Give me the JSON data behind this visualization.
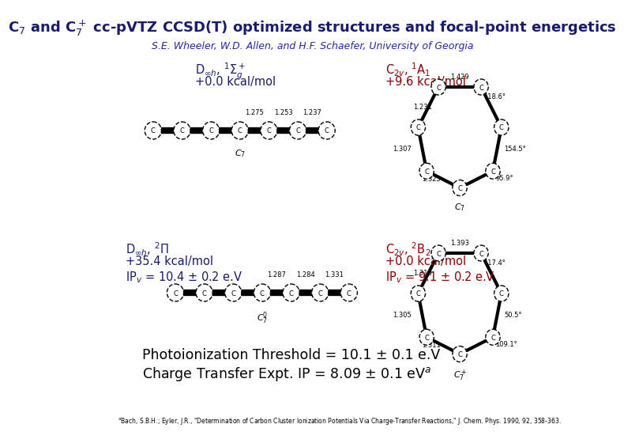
{
  "title": "C$_7$ and C$_7^+$ cc-pVTZ CCSD(T) optimized structures and focal-point energetics",
  "subtitle": "S.E. Wheeler, W.D. Allen, and H.F. Schaefer, University of Georgia",
  "title_color": "#1a1a6e",
  "subtitle_color": "#2828a0",
  "bg_color": "#ffffff",
  "label_neutral_1_line1": "D$_{\\infty h}$, $^1\\Sigma_g^+$",
  "label_neutral_1_line2": "+0.0 kcal/mol",
  "label_neutral_2_line1": "C$_{2v}$, $^1$A$_1$",
  "label_neutral_2_line2": "+9.6 kcal/mol",
  "label_cation_1_line1": "D$_{\\infty h}$, $^2\\Pi$",
  "label_cation_1_line2": "+35.4 kcal/mol",
  "label_cation_1_line3": "IP$_v$ = 10.4 ± 0.2 e.V",
  "label_cation_2_line1": "C$_{2v}$, $^2$B$_2$",
  "label_cation_2_line2": "+0.0 kcal/mol",
  "label_cation_2_line3": "IP$_v$ = 9.1 ± 0.2 e.V",
  "photoion_line1": "Photoionization Threshold = 10.1 ± 0.1 e.V",
  "photoion_line2": "Charge Transfer Expt. IP = 8.09 ± 0.1 eV$^a$",
  "footnote": "$^a$Bach, S.B.H.; Eyler, J.R., \"Determination of Carbon Cluster Ionization Potentials Via Charge-Transfer Reactions,\" J. Chem. Phys. 1990, 92, 358-363.",
  "color_blue": "#1a1a6e",
  "color_red": "#8b0000",
  "color_black": "#000000",
  "linear_bond_labels_neutral": [
    "1.275",
    "1.253",
    "1.237"
  ],
  "linear_bond_labels_cation": [
    "1.287",
    "1.284",
    "1.331"
  ],
  "cyclic_neutral_bond_labels": [
    "1.429",
    "1.231",
    "1.307",
    "1.325"
  ],
  "cyclic_neutral_angle_labels": [
    "118.6°",
    "154.5°",
    "95.9°"
  ],
  "cyclic_cation_bond_labels": [
    "1.393",
    "1.313",
    "1.305",
    "1.311"
  ],
  "cyclic_cation_angle_labels": [
    "117.4°",
    "50.5°",
    "109.1°"
  ]
}
